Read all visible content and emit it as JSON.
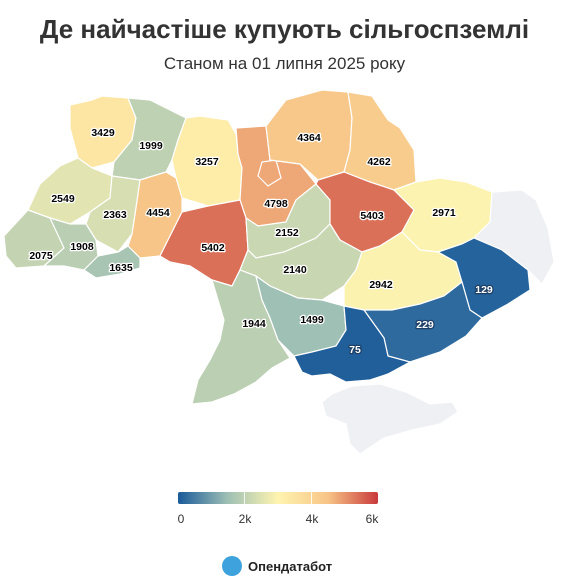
{
  "title": "Де найчастіше купують сільгоспземлі",
  "subtitle": "Станом на 01 липня 2025 року",
  "chart_data": {
    "type": "choropleth",
    "color_scale": [
      "#1a5a9a",
      "#9fc0b4",
      "#fff4b0",
      "#f7c486",
      "#c9393b"
    ],
    "no_data_color": "#eef0f4",
    "legend": {
      "min": 0,
      "max": 6000,
      "ticks": [
        "0",
        "2k",
        "4k",
        "6k"
      ]
    },
    "regions": [
      {
        "id": "volyn",
        "value": 3429
      },
      {
        "id": "rivne",
        "value": 1999
      },
      {
        "id": "zhytomyr",
        "value": 3257
      },
      {
        "id": "chernihiv",
        "value": 4364
      },
      {
        "id": "sumy",
        "value": 4262
      },
      {
        "id": "lviv",
        "value": 2549
      },
      {
        "id": "ternopil",
        "value": 2363
      },
      {
        "id": "khmelnytskyi",
        "value": 4454
      },
      {
        "id": "kyiv",
        "value": 4798
      },
      {
        "id": "poltava",
        "value": 5403
      },
      {
        "id": "kharkiv",
        "value": 2971
      },
      {
        "id": "zakarpattia",
        "value": 2075
      },
      {
        "id": "ivano-frankivsk",
        "value": 1908
      },
      {
        "id": "chernivtsi",
        "value": 1635
      },
      {
        "id": "vinnytsia",
        "value": 5402
      },
      {
        "id": "cherkasy",
        "value": 2152
      },
      {
        "id": "kirovohrad",
        "value": 2140
      },
      {
        "id": "dnipropetrovsk",
        "value": 2942
      },
      {
        "id": "donetsk",
        "value": 129
      },
      {
        "id": "odesa",
        "value": 1944
      },
      {
        "id": "mykolaiv",
        "value": 1499
      },
      {
        "id": "zaporizhzhia",
        "value": 229
      },
      {
        "id": "kherson",
        "value": 75
      },
      {
        "id": "luhansk",
        "value": null
      },
      {
        "id": "crimea",
        "value": null
      }
    ]
  },
  "logo": {
    "text": "Опендатабот"
  }
}
